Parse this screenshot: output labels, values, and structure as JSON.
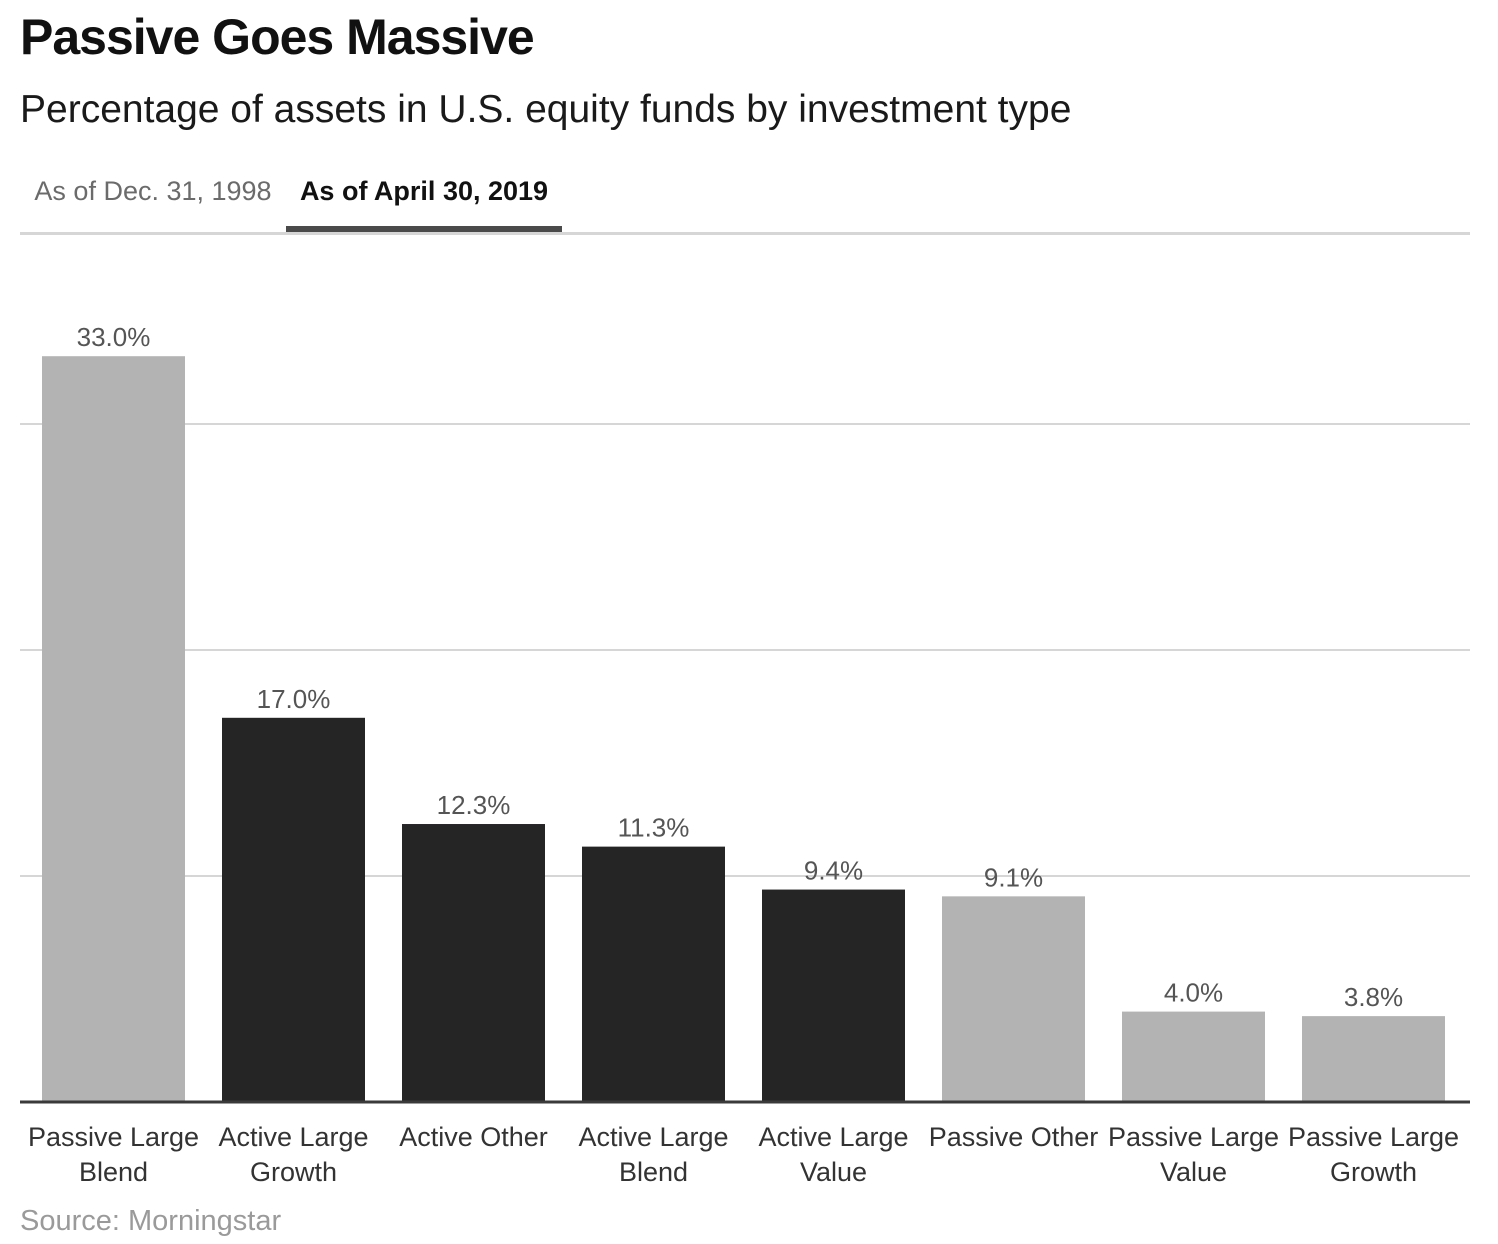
{
  "header": {
    "title": "Passive Goes Massive",
    "subtitle": "Percentage of assets in U.S. equity funds by investment type"
  },
  "tabs": [
    {
      "label": "As of Dec. 31, 1998",
      "active": false
    },
    {
      "label": "As of April 30, 2019",
      "active": true
    }
  ],
  "colors": {
    "passive": "#b3b3b3",
    "active": "#262526",
    "label": "#555555",
    "grid": "#d6d6d6",
    "axis": "#3a3a3a"
  },
  "chart_data": {
    "type": "bar",
    "title": "",
    "xlabel": "",
    "ylabel": "",
    "categories": [
      [
        "Passive Large",
        "Blend"
      ],
      [
        "Active Large",
        "Growth"
      ],
      [
        "Active Other"
      ],
      [
        "Active Large",
        "Blend"
      ],
      [
        "Active Large",
        "Value"
      ],
      [
        "Passive Other"
      ],
      [
        "Passive Large",
        "Value"
      ],
      [
        "Passive Large",
        "Growth"
      ]
    ],
    "values": [
      33.0,
      17.0,
      12.3,
      11.3,
      9.4,
      9.1,
      4.0,
      3.8
    ],
    "value_labels": [
      "33.0%",
      "17.0%",
      "12.3%",
      "11.3%",
      "9.4%",
      "9.1%",
      "4.0%",
      "3.8%"
    ],
    "kind": [
      "passive",
      "active",
      "active",
      "active",
      "active",
      "passive",
      "passive",
      "passive"
    ],
    "ylim": [
      0,
      40
    ],
    "gridlines": [
      10,
      20,
      30,
      40
    ],
    "grid": true,
    "legend": "none"
  },
  "footer": {
    "source": "Source: Morningstar"
  }
}
